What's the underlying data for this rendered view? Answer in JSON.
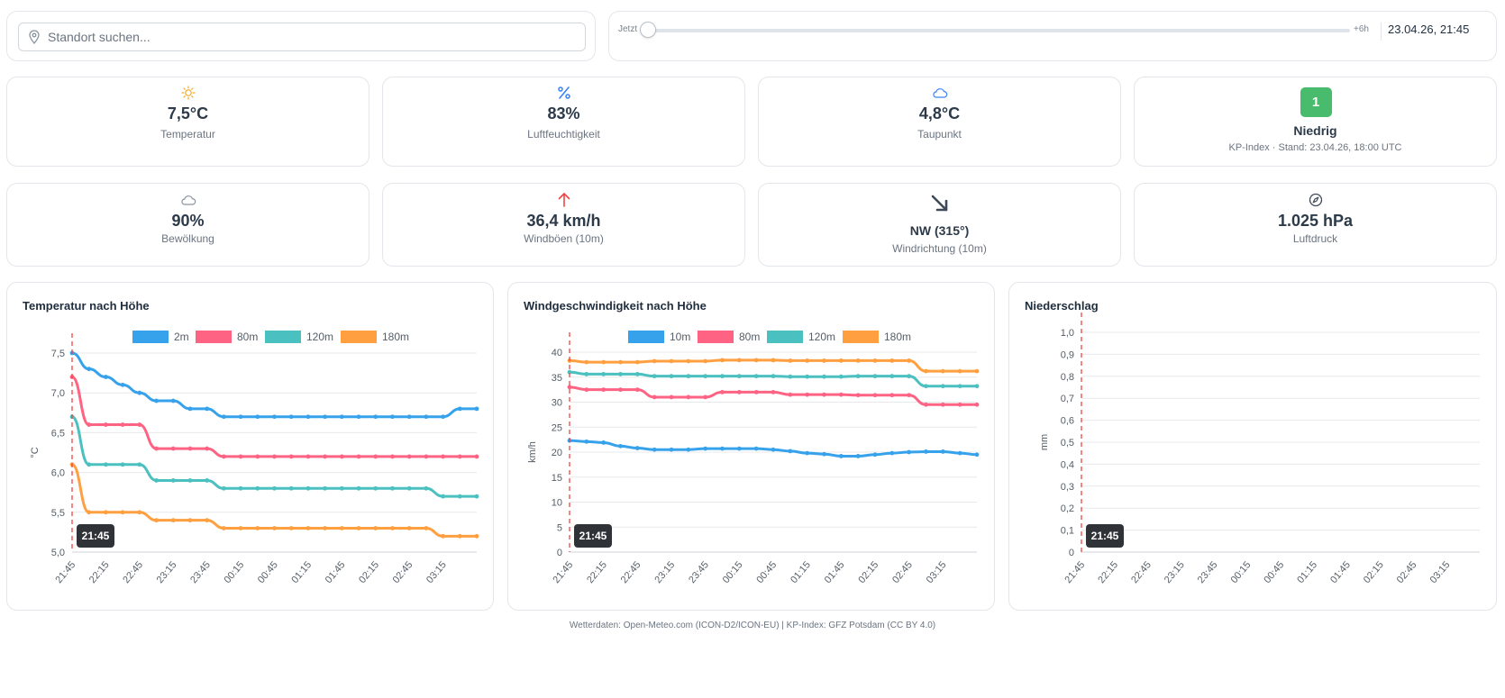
{
  "search": {
    "placeholder": "Standort suchen...",
    "icon": "map-pin-icon"
  },
  "time": {
    "min_label": "Jetzt",
    "max_label": "+6h",
    "current": "23.04.26, 21:45",
    "slider_value": 0
  },
  "metrics": [
    {
      "id": "temperature",
      "icon": "sun-icon",
      "value": "7,5°C",
      "label": "Temperatur",
      "color": "#f5a623"
    },
    {
      "id": "humidity",
      "icon": "percent-icon",
      "value": "83%",
      "label": "Luftfeuchtigkeit",
      "color": "#3b82f6"
    },
    {
      "id": "dewpoint",
      "icon": "cloud-icon",
      "value": "4,8°C",
      "label": "Taupunkt",
      "color": "#3b82f6"
    },
    {
      "id": "kp",
      "badge": "1",
      "value": "Niedrig",
      "label": "KP-Index · Stand: 23.04.26, 18:00 UTC",
      "color": "#48bb6c"
    },
    {
      "id": "cloudcover",
      "icon": "cloud-icon",
      "value": "90%",
      "label": "Bewölkung",
      "color": "#8a939d"
    },
    {
      "id": "gusts",
      "icon": "arrow-up-icon",
      "value": "36,4 km/h",
      "label": "Windböen (10m)",
      "color": "#ef4444"
    },
    {
      "id": "winddir",
      "icon": "arrow-down-right-icon",
      "value": "NW (315°)",
      "label": "Windrichtung (10m)",
      "color": "#3f4a58"
    },
    {
      "id": "pressure",
      "icon": "compass-icon",
      "value": "1.025 hPa",
      "label": "Luftdruck",
      "color": "#3f4a58"
    }
  ],
  "chart_data": [
    {
      "type": "line",
      "title": "Temperatur nach Höhe",
      "ylabel": "°C",
      "xlabel": "",
      "ylim": [
        5.0,
        7.5
      ],
      "yticks": [
        5.0,
        5.5,
        6.0,
        6.5,
        7.0,
        7.5
      ],
      "ytick_labels": [
        "5,0",
        "5,5",
        "6,0",
        "6,5",
        "7,0",
        "7,5"
      ],
      "x": [
        "21:45",
        "22:00",
        "22:15",
        "22:30",
        "22:45",
        "23:00",
        "23:15",
        "23:30",
        "23:45",
        "00:00",
        "00:15",
        "00:30",
        "00:45",
        "01:00",
        "01:15",
        "01:30",
        "01:45",
        "02:00",
        "02:15",
        "02:30",
        "02:45",
        "03:00",
        "03:15",
        "03:30",
        "03:45"
      ],
      "xtick_labels": [
        "21:45",
        "22:15",
        "22:45",
        "23:15",
        "23:45",
        "00:15",
        "00:45",
        "01:15",
        "01:45",
        "02:15",
        "02:45",
        "03:15"
      ],
      "legend_position": "top",
      "grid": true,
      "marker_label": "21:45",
      "series": [
        {
          "name": "2m",
          "color": "#36a2eb",
          "values": [
            7.5,
            7.3,
            7.2,
            7.1,
            7.0,
            6.9,
            6.9,
            6.8,
            6.8,
            6.7,
            6.7,
            6.7,
            6.7,
            6.7,
            6.7,
            6.7,
            6.7,
            6.7,
            6.7,
            6.7,
            6.7,
            6.7,
            6.7,
            6.8,
            6.8
          ]
        },
        {
          "name": "80m",
          "color": "#ff6384",
          "values": [
            7.2,
            6.6,
            6.6,
            6.6,
            6.6,
            6.3,
            6.3,
            6.3,
            6.3,
            6.2,
            6.2,
            6.2,
            6.2,
            6.2,
            6.2,
            6.2,
            6.2,
            6.2,
            6.2,
            6.2,
            6.2,
            6.2,
            6.2,
            6.2,
            6.2
          ]
        },
        {
          "name": "120m",
          "color": "#4bc0c0",
          "values": [
            6.7,
            6.1,
            6.1,
            6.1,
            6.1,
            5.9,
            5.9,
            5.9,
            5.9,
            5.8,
            5.8,
            5.8,
            5.8,
            5.8,
            5.8,
            5.8,
            5.8,
            5.8,
            5.8,
            5.8,
            5.8,
            5.8,
            5.7,
            5.7,
            5.7
          ]
        },
        {
          "name": "180m",
          "color": "#ff9f40",
          "values": [
            6.1,
            5.5,
            5.5,
            5.5,
            5.5,
            5.4,
            5.4,
            5.4,
            5.4,
            5.3,
            5.3,
            5.3,
            5.3,
            5.3,
            5.3,
            5.3,
            5.3,
            5.3,
            5.3,
            5.3,
            5.3,
            5.3,
            5.2,
            5.2,
            5.2
          ]
        }
      ]
    },
    {
      "type": "line",
      "title": "Windgeschwindigkeit nach Höhe",
      "ylabel": "km/h",
      "xlabel": "",
      "ylim": [
        0,
        40
      ],
      "yticks": [
        0,
        5,
        10,
        15,
        20,
        25,
        30,
        35,
        40
      ],
      "ytick_labels": [
        "0",
        "5",
        "10",
        "15",
        "20",
        "25",
        "30",
        "35",
        "40"
      ],
      "x": [
        "21:45",
        "22:00",
        "22:15",
        "22:30",
        "22:45",
        "23:00",
        "23:15",
        "23:30",
        "23:45",
        "00:00",
        "00:15",
        "00:30",
        "00:45",
        "01:00",
        "01:15",
        "01:30",
        "01:45",
        "02:00",
        "02:15",
        "02:30",
        "02:45",
        "03:00",
        "03:15",
        "03:30",
        "03:45"
      ],
      "xtick_labels": [
        "21:45",
        "22:15",
        "22:45",
        "23:15",
        "23:45",
        "00:15",
        "00:45",
        "01:15",
        "01:45",
        "02:15",
        "02:45",
        "03:15"
      ],
      "legend_position": "top",
      "grid": true,
      "marker_label": "21:45",
      "series": [
        {
          "name": "10m",
          "color": "#36a2eb",
          "values": [
            22.3,
            22.1,
            21.9,
            21.2,
            20.8,
            20.5,
            20.5,
            20.5,
            20.7,
            20.7,
            20.7,
            20.7,
            20.5,
            20.2,
            19.8,
            19.6,
            19.2,
            19.2,
            19.5,
            19.8,
            20.0,
            20.1,
            20.1,
            19.8,
            19.5
          ]
        },
        {
          "name": "80m",
          "color": "#ff6384",
          "values": [
            33.0,
            32.5,
            32.5,
            32.5,
            32.5,
            31.0,
            31.0,
            31.0,
            31.0,
            32.0,
            32.0,
            32.0,
            32.0,
            31.5,
            31.5,
            31.5,
            31.5,
            31.4,
            31.4,
            31.4,
            31.4,
            29.5,
            29.5,
            29.5,
            29.5
          ]
        },
        {
          "name": "120m",
          "color": "#4bc0c0",
          "values": [
            36.0,
            35.6,
            35.6,
            35.6,
            35.6,
            35.2,
            35.2,
            35.2,
            35.2,
            35.2,
            35.2,
            35.2,
            35.2,
            35.1,
            35.1,
            35.1,
            35.1,
            35.2,
            35.2,
            35.2,
            35.2,
            33.2,
            33.2,
            33.2,
            33.2
          ]
        },
        {
          "name": "180m",
          "color": "#ff9f40",
          "values": [
            38.3,
            38.0,
            38.0,
            38.0,
            38.0,
            38.2,
            38.2,
            38.2,
            38.2,
            38.4,
            38.4,
            38.4,
            38.4,
            38.3,
            38.3,
            38.3,
            38.3,
            38.3,
            38.3,
            38.3,
            38.3,
            36.2,
            36.2,
            36.2,
            36.2
          ]
        }
      ]
    },
    {
      "type": "bar",
      "title": "Niederschlag",
      "ylabel": "mm",
      "xlabel": "",
      "ylim": [
        0,
        1.0
      ],
      "yticks": [
        0,
        0.1,
        0.2,
        0.3,
        0.4,
        0.5,
        0.6,
        0.7,
        0.8,
        0.9,
        1.0
      ],
      "ytick_labels": [
        "0",
        "0,1",
        "0,2",
        "0,3",
        "0,4",
        "0,5",
        "0,6",
        "0,7",
        "0,8",
        "0,9",
        "1,0"
      ],
      "x": [
        "21:45",
        "22:00",
        "22:15",
        "22:30",
        "22:45",
        "23:00",
        "23:15",
        "23:30",
        "23:45",
        "00:00",
        "00:15",
        "00:30",
        "00:45",
        "01:00",
        "01:15",
        "01:30",
        "01:45",
        "02:00",
        "02:15",
        "02:30",
        "02:45",
        "03:00",
        "03:15",
        "03:30",
        "03:45"
      ],
      "xtick_labels": [
        "21:45",
        "22:15",
        "22:45",
        "23:15",
        "23:45",
        "00:15",
        "00:45",
        "01:15",
        "01:45",
        "02:15",
        "02:45",
        "03:15"
      ],
      "legend_position": "none",
      "grid": true,
      "marker_label": "21:45",
      "series": [
        {
          "name": "",
          "color": "#36a2eb",
          "values": [
            0,
            0,
            0,
            0,
            0,
            0,
            0,
            0,
            0,
            0,
            0,
            0,
            0,
            0,
            0,
            0,
            0,
            0,
            0,
            0,
            0,
            0,
            0,
            0,
            0
          ]
        }
      ]
    }
  ],
  "footer": "Wetterdaten: Open-Meteo.com (ICON-D2/ICON-EU) | KP-Index: GFZ Potsdam (CC BY 4.0)"
}
